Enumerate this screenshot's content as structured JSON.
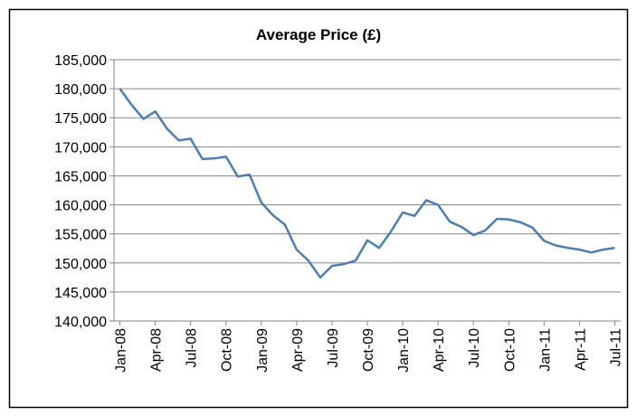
{
  "chart_data": {
    "type": "line",
    "title": "Average Price (£)",
    "categories": [
      "Jan-08",
      null,
      null,
      "Apr-08",
      null,
      null,
      "Jul-08",
      null,
      null,
      "Oct-08",
      null,
      null,
      "Jan-09",
      null,
      null,
      "Apr-09",
      null,
      null,
      "Jul-09",
      null,
      null,
      "Oct-09",
      null,
      null,
      "Jan-10",
      null,
      null,
      "Apr-10",
      null,
      null,
      "Jul-10",
      null,
      null,
      "Oct-10",
      null,
      null,
      "Jan-11",
      null,
      null,
      "Apr-11",
      null,
      null,
      "Jul-11"
    ],
    "series": [
      {
        "name": "Average Price (£)",
        "color": "#4a7ebb",
        "values": [
          180000,
          177200,
          174800,
          176100,
          173100,
          171100,
          171400,
          167900,
          168000,
          168300,
          164900,
          165200,
          160400,
          158200,
          156600,
          152300,
          150400,
          147500,
          149500,
          149800,
          150400,
          153900,
          152600,
          155400,
          158700,
          158100,
          160800,
          160000,
          157100,
          156200,
          154800,
          155600,
          157600,
          157500,
          157000,
          156100,
          153800,
          153000,
          152600,
          152300,
          151800,
          152300,
          152600
        ]
      }
    ],
    "ylim": [
      140000,
      185000
    ],
    "yticks": [
      {
        "value": 140000,
        "label": "140,000"
      },
      {
        "value": 145000,
        "label": "145,000"
      },
      {
        "value": 150000,
        "label": "150,000"
      },
      {
        "value": 155000,
        "label": "155,000"
      },
      {
        "value": 160000,
        "label": "160,000"
      },
      {
        "value": 165000,
        "label": "165,000"
      },
      {
        "value": 170000,
        "label": "170,000"
      },
      {
        "value": 175000,
        "label": "175,000"
      },
      {
        "value": 180000,
        "label": "180,000"
      },
      {
        "value": 185000,
        "label": "185,000"
      }
    ],
    "grid": true
  }
}
